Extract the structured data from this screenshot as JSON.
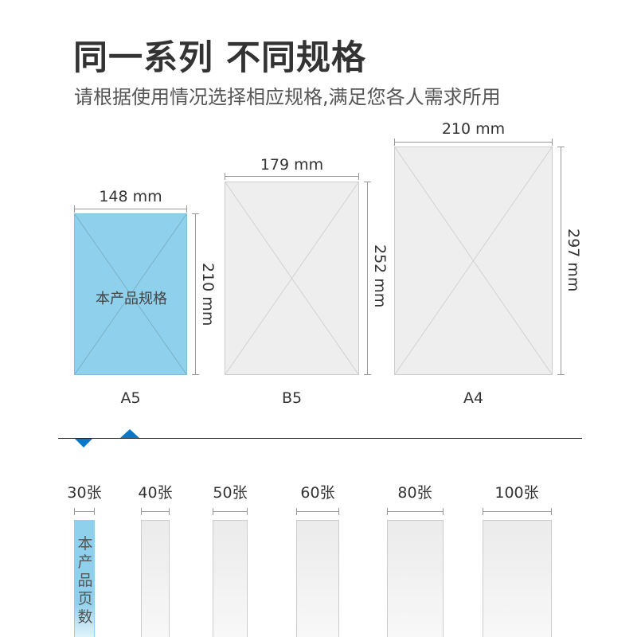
{
  "title": "同一系列 不同规格",
  "subtitle": "请根据使用情况选择相应规格,满足您各人需求所用",
  "colors": {
    "highlight": "#8fd0ec",
    "accent": "#0a78c8",
    "sheet": "#eeeeee"
  },
  "sizes": [
    {
      "name": "A5",
      "width": "148 mm",
      "height": "210 mm",
      "note": "本产品规格",
      "selected": true
    },
    {
      "name": "B5",
      "width": "179 mm",
      "height": "252 mm",
      "selected": false
    },
    {
      "name": "A4",
      "width": "210 mm",
      "height": "297 mm",
      "selected": false
    }
  ],
  "thickness": {
    "current_note": "本产品页数",
    "options": [
      {
        "label": "30张",
        "selected": true
      },
      {
        "label": "40张"
      },
      {
        "label": "50张"
      },
      {
        "label": "60张"
      },
      {
        "label": "80张"
      },
      {
        "label": "100张"
      }
    ]
  }
}
